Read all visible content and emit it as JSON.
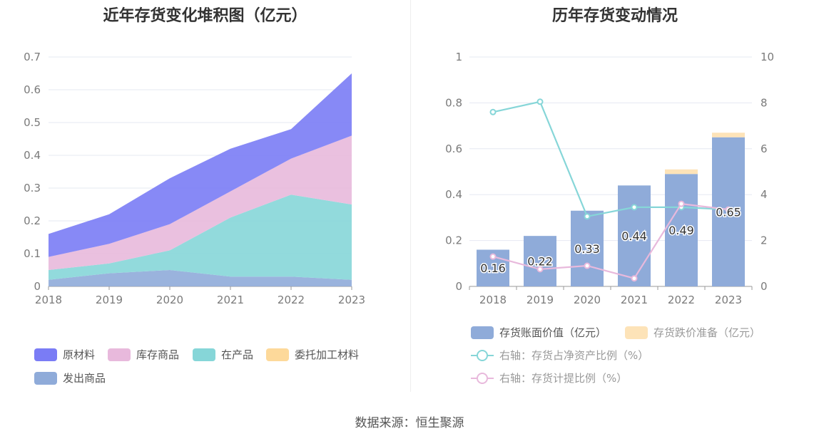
{
  "left_chart": {
    "title": "近年存货变化堆积图（亿元）",
    "chart_data": {
      "type": "area",
      "stacked": true,
      "x": [
        "2018",
        "2019",
        "2020",
        "2021",
        "2022",
        "2023"
      ],
      "ylim": [
        0,
        0.7
      ],
      "yticks": [
        "0",
        "0.1",
        "0.2",
        "0.3",
        "0.4",
        "0.5",
        "0.6",
        "0.7"
      ],
      "grid": true,
      "legend_position": "bottom",
      "series": [
        {
          "name": "发出商品",
          "color": "#8fabd9",
          "values": [
            0.02,
            0.04,
            0.05,
            0.03,
            0.03,
            0.02
          ]
        },
        {
          "name": "委托加工材料",
          "color": "#fdd99a",
          "values": [
            0,
            0,
            0,
            0,
            0,
            0
          ]
        },
        {
          "name": "在产品",
          "color": "#86d6d8",
          "values": [
            0.03,
            0.03,
            0.06,
            0.18,
            0.25,
            0.23
          ]
        },
        {
          "name": "库存商品",
          "color": "#e8b9dc",
          "values": [
            0.04,
            0.06,
            0.08,
            0.08,
            0.11,
            0.21
          ]
        },
        {
          "name": "原材料",
          "color": "#7a7cf5",
          "values": [
            0.07,
            0.09,
            0.14,
            0.13,
            0.09,
            0.19
          ]
        }
      ]
    },
    "legend": [
      {
        "label": "原材料",
        "color": "#7a7cf5"
      },
      {
        "label": "库存商品",
        "color": "#e8b9dc"
      },
      {
        "label": "在产品",
        "color": "#86d6d8"
      },
      {
        "label": "委托加工材料",
        "color": "#fdd99a"
      },
      {
        "label": "发出商品",
        "color": "#8fabd9"
      }
    ]
  },
  "right_chart": {
    "title": "历年存货变动情况",
    "chart_data": {
      "type": "bar",
      "stacked": true,
      "categories": [
        "2018",
        "2019",
        "2020",
        "2021",
        "2022",
        "2023"
      ],
      "ylim": [
        0,
        1
      ],
      "yticks": [
        "0",
        "0.2",
        "0.4",
        "0.6",
        "0.8",
        "1"
      ],
      "y2lim": [
        0,
        10
      ],
      "y2ticks": [
        "0",
        "2",
        "4",
        "6",
        "8",
        "10"
      ],
      "grid": true,
      "legend_position": "bottom",
      "bar_series": [
        {
          "name": "存货账面价值（亿元）",
          "color": "#8fabd9",
          "values": [
            0.16,
            0.22,
            0.33,
            0.44,
            0.49,
            0.65
          ],
          "labels": [
            "0.16",
            "0.22",
            "0.33",
            "0.44",
            "0.49",
            "0.65"
          ]
        },
        {
          "name": "存货跌价准备（亿元）",
          "color": "#fde3b8",
          "values": [
            0,
            0,
            0,
            0,
            0.02,
            0.02
          ]
        }
      ],
      "line_series": [
        {
          "name": "右轴：存货占净资产比例（%）",
          "color": "#86d6d8",
          "values": [
            7.6,
            8.05,
            3.05,
            3.45,
            3.45,
            3.35
          ]
        },
        {
          "name": "右轴：存货计提比例（%）",
          "color": "#e8b9dc",
          "values": [
            1.3,
            0.75,
            0.9,
            0.35,
            3.6,
            3.35
          ]
        }
      ]
    },
    "legend": [
      {
        "label": "存货账面价值（亿元）",
        "color": "#8fabd9",
        "kind": "rect"
      },
      {
        "label": "存货跌价准备（亿元）",
        "color": "#fde3b8",
        "kind": "rect"
      },
      {
        "label": "右轴：存货占净资产比例（%）",
        "color": "#86d6d8",
        "kind": "line"
      },
      {
        "label": "右轴：存货计提比例（%）",
        "color": "#e8b9dc",
        "kind": "line"
      }
    ]
  },
  "source": "数据来源：恒生聚源"
}
